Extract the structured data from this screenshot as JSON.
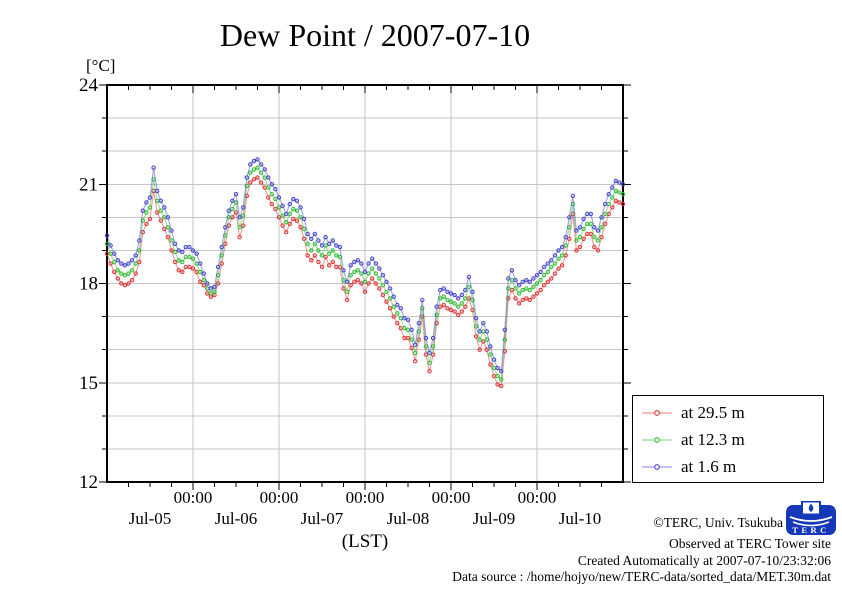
{
  "title": "Dew Point / 2007-07-10",
  "footer": {
    "copyright": "©TERC, Univ. Tsukuba",
    "observed": "Observed at TERC Tower site",
    "created": "Created Automatically at 2007-07-10/23:32:06",
    "source": "Data source : /home/hojyo/new/TERC-data/sorted_data/MET.30m.dat",
    "logo_text": "TERC"
  },
  "colors": {
    "grid": "#c6c6c6",
    "axis": "#000000",
    "logo_blue": "#1538b8"
  },
  "chart_data": {
    "type": "line",
    "title": "Dew Point / 2007-07-10",
    "grid": true,
    "legend_position": "bottom-right",
    "x_axis": {
      "label": "(LST)",
      "range_hours": [
        0,
        144
      ],
      "minor_tick_step_hours": 6,
      "major_tick_hours": [
        24,
        48,
        72,
        96,
        120
      ],
      "time_tick_label": "00:00",
      "day_labels": [
        "Jul-05",
        "Jul-06",
        "Jul-07",
        "Jul-08",
        "Jul-09",
        "Jul-10"
      ],
      "day_label_hours": [
        12,
        36,
        60,
        84,
        108,
        132
      ]
    },
    "y_axis": {
      "unit": "[°C]",
      "range": [
        12,
        24
      ],
      "major_ticks": [
        12,
        15,
        18,
        21,
        24
      ],
      "minor_step": 1
    },
    "sampling": "hourly values, hours after 2007-07-05 00:00 LST",
    "series": [
      {
        "label": "at 29.5 m",
        "color": "#dd3333",
        "marker": "open-circle",
        "values_hourly": [
          18.9,
          18.6,
          18.35,
          18.15,
          18.0,
          17.95,
          18.0,
          18.1,
          18.3,
          18.65,
          19.55,
          19.8,
          19.95,
          20.8,
          20.15,
          19.9,
          19.65,
          19.4,
          19.0,
          18.65,
          18.4,
          18.35,
          18.5,
          18.5,
          18.45,
          18.35,
          18.05,
          17.95,
          17.7,
          17.6,
          17.65,
          18.0,
          18.6,
          19.2,
          19.75,
          20.0,
          20.15,
          19.4,
          19.75,
          20.65,
          21.05,
          21.15,
          21.2,
          21.05,
          20.9,
          20.6,
          20.4,
          20.25,
          20.0,
          19.75,
          19.55,
          19.8,
          19.95,
          19.9,
          19.7,
          19.35,
          18.85,
          18.7,
          18.85,
          18.65,
          18.5,
          18.8,
          18.55,
          18.65,
          18.5,
          18.5,
          17.85,
          17.5,
          17.95,
          18.05,
          18.1,
          18.0,
          17.75,
          18.0,
          18.15,
          18.0,
          17.85,
          17.65,
          17.45,
          17.25,
          17.0,
          16.8,
          16.65,
          16.35,
          16.35,
          16.05,
          15.65,
          16.3,
          17.0,
          15.85,
          15.35,
          15.85,
          16.8,
          17.3,
          17.35,
          17.25,
          17.2,
          17.15,
          17.05,
          17.15,
          17.3,
          17.55,
          17.2,
          16.4,
          16.0,
          16.25,
          16.0,
          15.55,
          15.2,
          14.95,
          14.9,
          15.95,
          17.55,
          17.8,
          17.55,
          17.4,
          17.5,
          17.55,
          17.5,
          17.6,
          17.7,
          17.8,
          17.95,
          18.05,
          18.15,
          18.3,
          18.45,
          18.55,
          18.85,
          19.35,
          20.1,
          19.0,
          19.1,
          19.35,
          19.5,
          19.5,
          19.1,
          19.0,
          19.4,
          19.8,
          20.1,
          20.3,
          20.5,
          20.45,
          20.4
        ]
      },
      {
        "label": "at 12.3 m",
        "color": "#33bb33",
        "marker": "open-circle",
        "values_hourly": [
          19.2,
          18.9,
          18.65,
          18.4,
          18.3,
          18.25,
          18.3,
          18.4,
          18.6,
          19.0,
          19.9,
          20.15,
          20.3,
          21.15,
          20.5,
          20.2,
          20.0,
          19.7,
          19.3,
          18.95,
          18.7,
          18.65,
          18.8,
          18.8,
          18.75,
          18.6,
          18.35,
          18.1,
          17.85,
          17.7,
          17.75,
          18.25,
          18.85,
          19.45,
          20.0,
          20.25,
          20.45,
          19.7,
          20.05,
          20.95,
          21.35,
          21.45,
          21.5,
          21.35,
          21.2,
          20.9,
          20.7,
          20.55,
          20.3,
          20.05,
          19.85,
          20.1,
          20.25,
          20.2,
          20.0,
          19.65,
          19.2,
          19.0,
          19.2,
          19.0,
          18.85,
          19.15,
          18.9,
          19.0,
          18.85,
          18.8,
          18.1,
          17.75,
          18.25,
          18.35,
          18.4,
          18.3,
          18.05,
          18.3,
          18.45,
          18.3,
          18.15,
          17.95,
          17.75,
          17.55,
          17.3,
          17.1,
          16.95,
          16.65,
          16.6,
          16.3,
          15.9,
          16.55,
          17.25,
          16.1,
          15.6,
          16.1,
          17.05,
          17.55,
          17.6,
          17.5,
          17.45,
          17.4,
          17.3,
          17.4,
          17.55,
          17.9,
          17.5,
          16.7,
          16.3,
          16.55,
          16.3,
          15.85,
          15.45,
          15.2,
          15.1,
          16.3,
          17.85,
          18.1,
          17.85,
          17.7,
          17.8,
          17.85,
          17.8,
          17.9,
          18.0,
          18.1,
          18.25,
          18.35,
          18.5,
          18.6,
          18.75,
          18.85,
          19.15,
          19.7,
          20.4,
          19.3,
          19.4,
          19.65,
          19.8,
          19.8,
          19.4,
          19.3,
          19.7,
          20.1,
          20.4,
          20.6,
          20.8,
          20.75,
          20.7
        ]
      },
      {
        "label": "at 1.6 m",
        "color": "#4444cc",
        "marker": "open-circle",
        "values_hourly": [
          19.45,
          19.15,
          18.9,
          18.7,
          18.6,
          18.55,
          18.6,
          18.7,
          18.85,
          19.3,
          20.2,
          20.45,
          20.6,
          21.5,
          20.8,
          20.5,
          20.3,
          20.0,
          19.6,
          19.2,
          19.0,
          18.95,
          19.1,
          19.1,
          19.0,
          18.9,
          18.6,
          18.3,
          18.0,
          17.85,
          17.9,
          18.5,
          19.1,
          19.7,
          20.2,
          20.5,
          20.7,
          20.0,
          20.3,
          21.2,
          21.6,
          21.7,
          21.75,
          21.6,
          21.45,
          21.2,
          21.0,
          20.85,
          20.6,
          20.35,
          20.1,
          20.4,
          20.55,
          20.5,
          20.3,
          19.95,
          19.5,
          19.35,
          19.5,
          19.3,
          19.15,
          19.4,
          19.2,
          19.3,
          19.15,
          19.1,
          18.4,
          18.05,
          18.55,
          18.65,
          18.7,
          18.6,
          18.35,
          18.6,
          18.75,
          18.6,
          18.45,
          18.25,
          18.05,
          17.85,
          17.6,
          17.35,
          17.25,
          16.95,
          16.9,
          16.6,
          16.15,
          16.8,
          17.5,
          16.35,
          15.9,
          16.35,
          17.3,
          17.8,
          17.85,
          17.75,
          17.7,
          17.65,
          17.55,
          17.65,
          17.8,
          18.2,
          17.75,
          16.95,
          16.55,
          16.8,
          16.55,
          16.1,
          15.7,
          15.45,
          15.35,
          16.6,
          18.15,
          18.4,
          18.1,
          17.95,
          18.05,
          18.1,
          18.05,
          18.15,
          18.25,
          18.35,
          18.5,
          18.6,
          18.7,
          18.85,
          19.0,
          19.1,
          19.4,
          20.0,
          20.65,
          19.6,
          19.7,
          19.95,
          20.1,
          20.1,
          19.7,
          19.6,
          20.0,
          20.4,
          20.7,
          20.9,
          21.1,
          21.05,
          21.0
        ]
      }
    ]
  }
}
